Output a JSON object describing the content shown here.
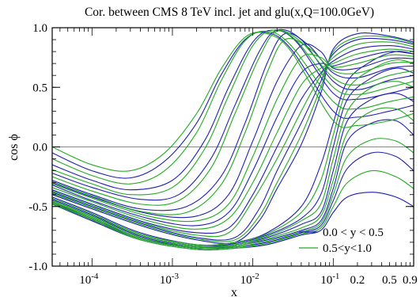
{
  "chart_data": {
    "type": "line",
    "title": "Cor. between CMS 8 TeV incl. jet and glu(x,Q=100.0GeV)",
    "xlabel": "x",
    "ylabel": "cos ϕ",
    "x_scale": "log",
    "xlim": [
      3.2e-05,
      1.0
    ],
    "ylim": [
      -1.0,
      1.0
    ],
    "x_ticks": [
      {
        "value": 0.0001,
        "base": "10",
        "exp": "-4"
      },
      {
        "value": 0.001,
        "base": "10",
        "exp": "-3"
      },
      {
        "value": 0.01,
        "base": "10",
        "exp": "-2"
      },
      {
        "value": 0.1,
        "base": "10",
        "exp": "-1"
      },
      {
        "value": 0.2,
        "label": "0.2"
      },
      {
        "value": 0.5,
        "label": "0.5"
      },
      {
        "value": 0.9,
        "label": "0.9"
      }
    ],
    "y_ticks": [
      {
        "value": -1.0,
        "label": "-1.0"
      },
      {
        "value": -0.5,
        "label": "-0.5"
      },
      {
        "value": 0.0,
        "label": "0.0"
      },
      {
        "value": 0.5,
        "label": "0.5"
      },
      {
        "value": 1.0,
        "label": "1.0"
      }
    ],
    "legend_position": "bottom-right",
    "series": [
      {
        "name": "0.0 < y < 0.5",
        "color": "#1f1fb4",
        "curves": [
          {
            "x": [
              3.2e-05,
              0.0001,
              0.0005,
              0.002,
              0.006,
              0.012,
              0.02,
              0.04,
              0.07,
              0.1,
              0.2,
              0.5,
              1.0
            ],
            "y": [
              -0.4,
              -0.52,
              -0.68,
              -0.78,
              -0.8,
              -0.62,
              -0.35,
              0.02,
              0.45,
              0.82,
              0.95,
              0.93,
              0.88
            ]
          },
          {
            "x": [
              3.2e-05,
              0.0001,
              0.0005,
              0.002,
              0.006,
              0.012,
              0.02,
              0.04,
              0.07,
              0.1,
              0.2,
              0.5,
              1.0
            ],
            "y": [
              -0.38,
              -0.5,
              -0.66,
              -0.76,
              -0.76,
              -0.52,
              -0.2,
              0.2,
              0.55,
              0.78,
              0.9,
              0.9,
              0.86
            ]
          },
          {
            "x": [
              3.2e-05,
              0.0001,
              0.0005,
              0.002,
              0.005,
              0.01,
              0.02,
              0.04,
              0.07,
              0.1,
              0.2,
              0.5,
              1.0
            ],
            "y": [
              -0.36,
              -0.48,
              -0.64,
              -0.72,
              -0.68,
              -0.4,
              0.0,
              0.4,
              0.62,
              0.72,
              0.82,
              0.85,
              0.82
            ]
          },
          {
            "x": [
              3.2e-05,
              0.0001,
              0.0005,
              0.002,
              0.005,
              0.01,
              0.02,
              0.04,
              0.07,
              0.1,
              0.2,
              0.5,
              1.0
            ],
            "y": [
              -0.32,
              -0.45,
              -0.6,
              -0.66,
              -0.55,
              -0.2,
              0.25,
              0.62,
              0.7,
              0.68,
              0.74,
              0.8,
              0.78
            ]
          },
          {
            "x": [
              3.2e-05,
              0.0001,
              0.0005,
              0.002,
              0.005,
              0.01,
              0.02,
              0.04,
              0.07,
              0.1,
              0.2,
              0.5,
              1.0
            ],
            "y": [
              -0.3,
              -0.42,
              -0.56,
              -0.58,
              -0.4,
              0.05,
              0.55,
              0.85,
              0.8,
              0.66,
              0.66,
              0.74,
              0.74
            ]
          },
          {
            "x": [
              3.2e-05,
              0.0001,
              0.0004,
              0.0015,
              0.004,
              0.008,
              0.015,
              0.025,
              0.05,
              0.1,
              0.2,
              0.5,
              1.0
            ],
            "y": [
              -0.28,
              -0.4,
              -0.52,
              -0.5,
              -0.25,
              0.2,
              0.7,
              0.95,
              0.85,
              0.62,
              0.58,
              0.66,
              0.68
            ]
          },
          {
            "x": [
              3.2e-05,
              0.0001,
              0.0004,
              0.0012,
              0.003,
              0.006,
              0.012,
              0.02,
              0.04,
              0.1,
              0.2,
              0.5,
              1.0
            ],
            "y": [
              -0.22,
              -0.34,
              -0.44,
              -0.4,
              -0.1,
              0.35,
              0.8,
              0.98,
              0.9,
              0.55,
              0.48,
              0.56,
              0.6
            ]
          },
          {
            "x": [
              3.2e-05,
              0.0001,
              0.0003,
              0.001,
              0.0025,
              0.005,
              0.01,
              0.018,
              0.035,
              0.1,
              0.2,
              0.5,
              1.0
            ],
            "y": [
              -0.15,
              -0.28,
              -0.36,
              -0.28,
              0.05,
              0.5,
              0.88,
              0.98,
              0.88,
              0.45,
              0.4,
              0.45,
              0.5
            ]
          },
          {
            "x": [
              3.2e-05,
              0.0001,
              0.0003,
              0.0008,
              0.002,
              0.004,
              0.008,
              0.015,
              0.03,
              0.1,
              0.2,
              0.5,
              1.0
            ],
            "y": [
              -0.05,
              -0.2,
              -0.26,
              -0.12,
              0.2,
              0.6,
              0.9,
              0.96,
              0.82,
              0.3,
              0.25,
              0.3,
              0.35
            ]
          },
          {
            "x": [
              3.2e-05,
              0.0001,
              0.0004,
              0.002,
              0.006,
              0.015,
              0.04,
              0.07,
              0.1,
              0.15,
              0.3,
              0.6,
              1.0
            ],
            "y": [
              -0.42,
              -0.55,
              -0.72,
              -0.82,
              -0.8,
              -0.72,
              -0.5,
              -0.15,
              0.2,
              0.55,
              0.72,
              0.8,
              0.78
            ]
          },
          {
            "x": [
              3.2e-05,
              0.0001,
              0.0004,
              0.002,
              0.006,
              0.015,
              0.04,
              0.07,
              0.1,
              0.15,
              0.3,
              0.6,
              1.0
            ],
            "y": [
              -0.44,
              -0.57,
              -0.74,
              -0.83,
              -0.81,
              -0.74,
              -0.6,
              -0.4,
              0.0,
              0.4,
              0.58,
              0.66,
              0.62
            ]
          },
          {
            "x": [
              3.2e-05,
              0.0001,
              0.0004,
              0.002,
              0.006,
              0.015,
              0.04,
              0.07,
              0.1,
              0.15,
              0.3,
              0.6,
              1.0
            ],
            "y": [
              -0.45,
              -0.58,
              -0.75,
              -0.84,
              -0.82,
              -0.76,
              -0.65,
              -0.55,
              -0.2,
              0.22,
              0.4,
              0.45,
              0.38
            ]
          },
          {
            "x": [
              3.2e-05,
              0.0001,
              0.0004,
              0.002,
              0.006,
              0.015,
              0.04,
              0.07,
              0.1,
              0.15,
              0.3,
              0.6,
              1.0
            ],
            "y": [
              -0.46,
              -0.6,
              -0.76,
              -0.85,
              -0.83,
              -0.78,
              -0.7,
              -0.62,
              -0.35,
              0.05,
              0.2,
              0.22,
              0.1
            ]
          },
          {
            "x": [
              3.2e-05,
              0.0001,
              0.0004,
              0.002,
              0.006,
              0.015,
              0.04,
              0.07,
              0.1,
              0.15,
              0.3,
              0.6,
              1.0
            ],
            "y": [
              -0.47,
              -0.61,
              -0.77,
              -0.85,
              -0.84,
              -0.8,
              -0.72,
              -0.66,
              -0.45,
              -0.18,
              -0.05,
              -0.08,
              -0.2
            ]
          },
          {
            "x": [
              3.2e-05,
              0.0001,
              0.0004,
              0.002,
              0.006,
              0.015,
              0.04,
              0.07,
              0.1,
              0.15,
              0.3,
              0.6,
              1.0
            ],
            "y": [
              -0.48,
              -0.62,
              -0.78,
              -0.86,
              -0.85,
              -0.82,
              -0.74,
              -0.7,
              -0.55,
              -0.42,
              -0.38,
              -0.42,
              -0.5
            ]
          }
        ]
      },
      {
        "name": "0.5<y<1.0",
        "color": "#22aa22",
        "curves": [
          {
            "x": [
              3.2e-05,
              0.0001,
              0.0005,
              0.002,
              0.006,
              0.012,
              0.02,
              0.04,
              0.07,
              0.1,
              0.2,
              0.5,
              1.0
            ],
            "y": [
              -0.39,
              -0.51,
              -0.67,
              -0.77,
              -0.78,
              -0.58,
              -0.3,
              0.1,
              0.5,
              0.8,
              0.92,
              0.92,
              0.87
            ]
          },
          {
            "x": [
              3.2e-05,
              0.0001,
              0.0005,
              0.002,
              0.005,
              0.01,
              0.02,
              0.04,
              0.07,
              0.1,
              0.2,
              0.5,
              1.0
            ],
            "y": [
              -0.37,
              -0.49,
              -0.65,
              -0.74,
              -0.72,
              -0.45,
              -0.1,
              0.3,
              0.6,
              0.75,
              0.86,
              0.88,
              0.84
            ]
          },
          {
            "x": [
              3.2e-05,
              0.0001,
              0.0005,
              0.002,
              0.005,
              0.01,
              0.02,
              0.04,
              0.07,
              0.1,
              0.2,
              0.5,
              1.0
            ],
            "y": [
              -0.34,
              -0.46,
              -0.62,
              -0.69,
              -0.6,
              -0.3,
              0.12,
              0.52,
              0.66,
              0.7,
              0.78,
              0.82,
              0.8
            ]
          },
          {
            "x": [
              3.2e-05,
              0.0001,
              0.0005,
              0.002,
              0.005,
              0.01,
              0.02,
              0.04,
              0.07,
              0.1,
              0.2,
              0.5,
              1.0
            ],
            "y": [
              -0.31,
              -0.43,
              -0.58,
              -0.62,
              -0.48,
              -0.08,
              0.4,
              0.75,
              0.75,
              0.67,
              0.7,
              0.77,
              0.76
            ]
          },
          {
            "x": [
              3.2e-05,
              0.0001,
              0.0004,
              0.0015,
              0.004,
              0.008,
              0.015,
              0.025,
              0.05,
              0.1,
              0.2,
              0.5,
              1.0
            ],
            "y": [
              -0.29,
              -0.41,
              -0.54,
              -0.55,
              -0.32,
              0.12,
              0.62,
              0.9,
              0.83,
              0.64,
              0.62,
              0.7,
              0.71
            ]
          },
          {
            "x": [
              3.2e-05,
              0.0001,
              0.0004,
              0.0012,
              0.003,
              0.006,
              0.012,
              0.02,
              0.04,
              0.1,
              0.2,
              0.5,
              1.0
            ],
            "y": [
              -0.25,
              -0.37,
              -0.48,
              -0.45,
              -0.18,
              0.28,
              0.75,
              0.97,
              0.88,
              0.58,
              0.52,
              0.6,
              0.64
            ]
          },
          {
            "x": [
              3.2e-05,
              0.0001,
              0.0003,
              0.001,
              0.0025,
              0.005,
              0.01,
              0.018,
              0.035,
              0.1,
              0.2,
              0.5,
              1.0
            ],
            "y": [
              -0.19,
              -0.31,
              -0.4,
              -0.34,
              -0.02,
              0.43,
              0.85,
              0.98,
              0.89,
              0.5,
              0.44,
              0.5,
              0.55
            ]
          },
          {
            "x": [
              3.2e-05,
              0.0001,
              0.0003,
              0.0008,
              0.002,
              0.004,
              0.008,
              0.015,
              0.03,
              0.1,
              0.2,
              0.5,
              1.0
            ],
            "y": [
              -0.1,
              -0.24,
              -0.31,
              -0.2,
              0.12,
              0.55,
              0.89,
              0.97,
              0.85,
              0.38,
              0.32,
              0.38,
              0.42
            ]
          },
          {
            "x": [
              3.2e-05,
              0.0001,
              0.0003,
              0.0008,
              0.002,
              0.004,
              0.008,
              0.015,
              0.03,
              0.1,
              0.2,
              0.5,
              1.0
            ],
            "y": [
              0.0,
              -0.15,
              -0.2,
              -0.05,
              0.28,
              0.65,
              0.92,
              0.95,
              0.8,
              0.22,
              0.18,
              0.22,
              0.28
            ]
          },
          {
            "x": [
              3.2e-05,
              0.0001,
              0.0004,
              0.002,
              0.006,
              0.015,
              0.04,
              0.07,
              0.1,
              0.15,
              0.3,
              0.6,
              1.0
            ],
            "y": [
              -0.43,
              -0.56,
              -0.73,
              -0.82,
              -0.8,
              -0.73,
              -0.55,
              -0.28,
              0.1,
              0.48,
              0.65,
              0.73,
              0.7
            ]
          },
          {
            "x": [
              3.2e-05,
              0.0001,
              0.0004,
              0.002,
              0.006,
              0.015,
              0.04,
              0.07,
              0.1,
              0.15,
              0.3,
              0.6,
              1.0
            ],
            "y": [
              -0.45,
              -0.58,
              -0.74,
              -0.83,
              -0.82,
              -0.75,
              -0.62,
              -0.48,
              -0.1,
              0.3,
              0.5,
              0.55,
              0.5
            ]
          },
          {
            "x": [
              3.2e-05,
              0.0001,
              0.0004,
              0.002,
              0.006,
              0.015,
              0.04,
              0.07,
              0.1,
              0.15,
              0.3,
              0.6,
              1.0
            ],
            "y": [
              -0.46,
              -0.59,
              -0.76,
              -0.84,
              -0.83,
              -0.77,
              -0.68,
              -0.58,
              -0.28,
              0.12,
              0.3,
              0.32,
              0.22
            ]
          },
          {
            "x": [
              3.2e-05,
              0.0001,
              0.0004,
              0.002,
              0.006,
              0.015,
              0.04,
              0.07,
              0.1,
              0.15,
              0.3,
              0.6,
              1.0
            ],
            "y": [
              -0.47,
              -0.6,
              -0.77,
              -0.85,
              -0.84,
              -0.79,
              -0.71,
              -0.64,
              -0.4,
              -0.08,
              0.06,
              0.05,
              -0.05
            ]
          },
          {
            "x": [
              3.2e-05,
              0.0001,
              0.0004,
              0.002,
              0.006,
              0.015,
              0.04,
              0.07,
              0.1,
              0.15,
              0.3,
              0.6,
              1.0
            ],
            "y": [
              -0.48,
              -0.61,
              -0.78,
              -0.86,
              -0.85,
              -0.81,
              -0.73,
              -0.68,
              -0.5,
              -0.3,
              -0.2,
              -0.25,
              -0.35
            ]
          }
        ]
      }
    ]
  }
}
